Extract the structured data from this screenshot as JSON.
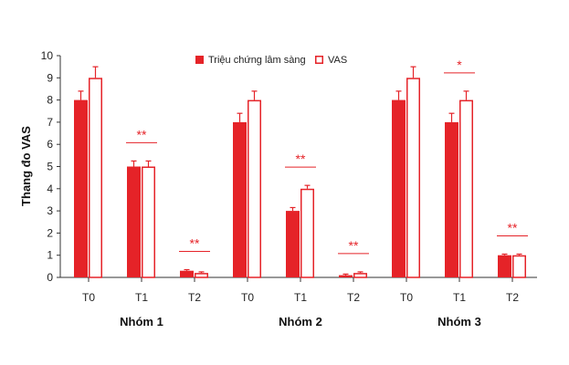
{
  "chart_data": {
    "type": "bar",
    "ylabel": "Thang đo VAS",
    "ylim": [
      0,
      10
    ],
    "yticks": [
      "0",
      "1",
      "2",
      "3",
      "4",
      "5",
      "6",
      "7",
      "8",
      "9",
      "10"
    ],
    "grid": false,
    "legend_position": "top-center",
    "colors": {
      "accent": "#e52328",
      "outline": "#e52328",
      "open_fill": "#ffffff",
      "axis": "#333333"
    },
    "series": [
      {
        "name": "Triệu chứng lâm sàng",
        "style": "filled"
      },
      {
        "name": "VAS",
        "style": "open"
      }
    ],
    "groups": [
      {
        "label": "Nhóm 1",
        "timepoints": [
          {
            "label": "T0",
            "values": [
              8.0,
              9.0
            ],
            "errors": [
              0.4,
              0.5
            ],
            "sig": ""
          },
          {
            "label": "T1",
            "values": [
              5.0,
              5.0
            ],
            "errors": [
              0.25,
              0.25
            ],
            "sig": "**"
          },
          {
            "label": "T2",
            "values": [
              0.3,
              0.2
            ],
            "errors": [
              0.05,
              0.05
            ],
            "sig": "**"
          }
        ]
      },
      {
        "label": "Nhóm 2",
        "timepoints": [
          {
            "label": "T0",
            "values": [
              7.0,
              8.0
            ],
            "errors": [
              0.4,
              0.4
            ],
            "sig": ""
          },
          {
            "label": "T1",
            "values": [
              3.0,
              4.0
            ],
            "errors": [
              0.15,
              0.15
            ],
            "sig": "**"
          },
          {
            "label": "T2",
            "values": [
              0.1,
              0.2
            ],
            "errors": [
              0.05,
              0.05
            ],
            "sig": "**"
          }
        ]
      },
      {
        "label": "Nhóm 3",
        "timepoints": [
          {
            "label": "T0",
            "values": [
              8.0,
              9.0
            ],
            "errors": [
              0.4,
              0.5
            ],
            "sig": ""
          },
          {
            "label": "T1",
            "values": [
              7.0,
              8.0
            ],
            "errors": [
              0.4,
              0.4
            ],
            "sig": "*"
          },
          {
            "label": "T2",
            "values": [
              1.0,
              1.0
            ],
            "errors": [
              0.05,
              0.05
            ],
            "sig": "**"
          }
        ]
      }
    ]
  }
}
